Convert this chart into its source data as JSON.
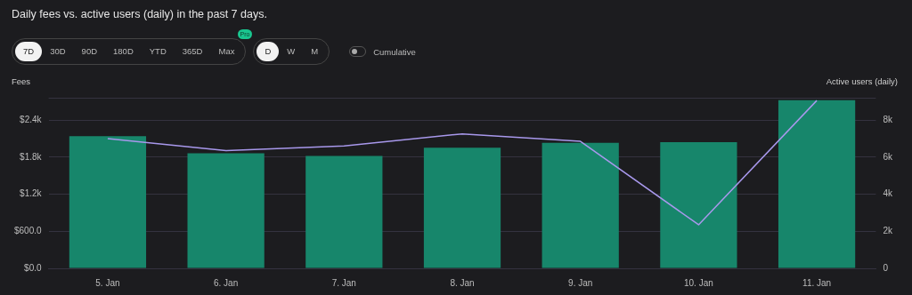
{
  "chart_data": {
    "type": "bar",
    "title": "Daily fees vs. active users (daily) in the past 7 days.",
    "ylabel": "Fees",
    "y2label": "Active users (daily)",
    "categories": [
      "5. Jan",
      "6. Jan",
      "7. Jan",
      "8. Jan",
      "9. Jan",
      "10. Jan",
      "11. Jan"
    ],
    "series": [
      {
        "color": "#17866b",
        "values": [
          2140,
          1860,
          1820,
          1950,
          2030,
          2040,
          2720
        ]
      },
      {
        "type": "line",
        "axis": "y2",
        "color": "#a898ec",
        "values": [
          7000,
          6350,
          6600,
          7250,
          6850,
          2350,
          9050
        ]
      }
    ],
    "ylim": [
      0,
      2760
    ],
    "yticks": [
      {
        "value": 0,
        "label": "$0.0"
      },
      {
        "value": 600,
        "label": "$600.0"
      },
      {
        "value": 1200,
        "label": "$1.2k"
      },
      {
        "value": 1800,
        "label": "$1.8k"
      },
      {
        "value": 2400,
        "label": "$2.4k"
      }
    ],
    "y2lim": [
      0,
      9200
    ],
    "y2ticks": [
      {
        "value": 0,
        "label": "0"
      },
      {
        "value": 2000,
        "label": "2k"
      },
      {
        "value": 4000,
        "label": "4k"
      },
      {
        "value": 6000,
        "label": "6k"
      },
      {
        "value": 8000,
        "label": "8k"
      }
    ],
    "grid": "y",
    "marker": "none",
    "line_style": "solid",
    "annotations": [
      "7D",
      "30D",
      "90D",
      "180D",
      "YTD",
      "365D",
      "Max",
      "Pro",
      "D",
      "W",
      "M",
      "Cumulative"
    ]
  }
}
